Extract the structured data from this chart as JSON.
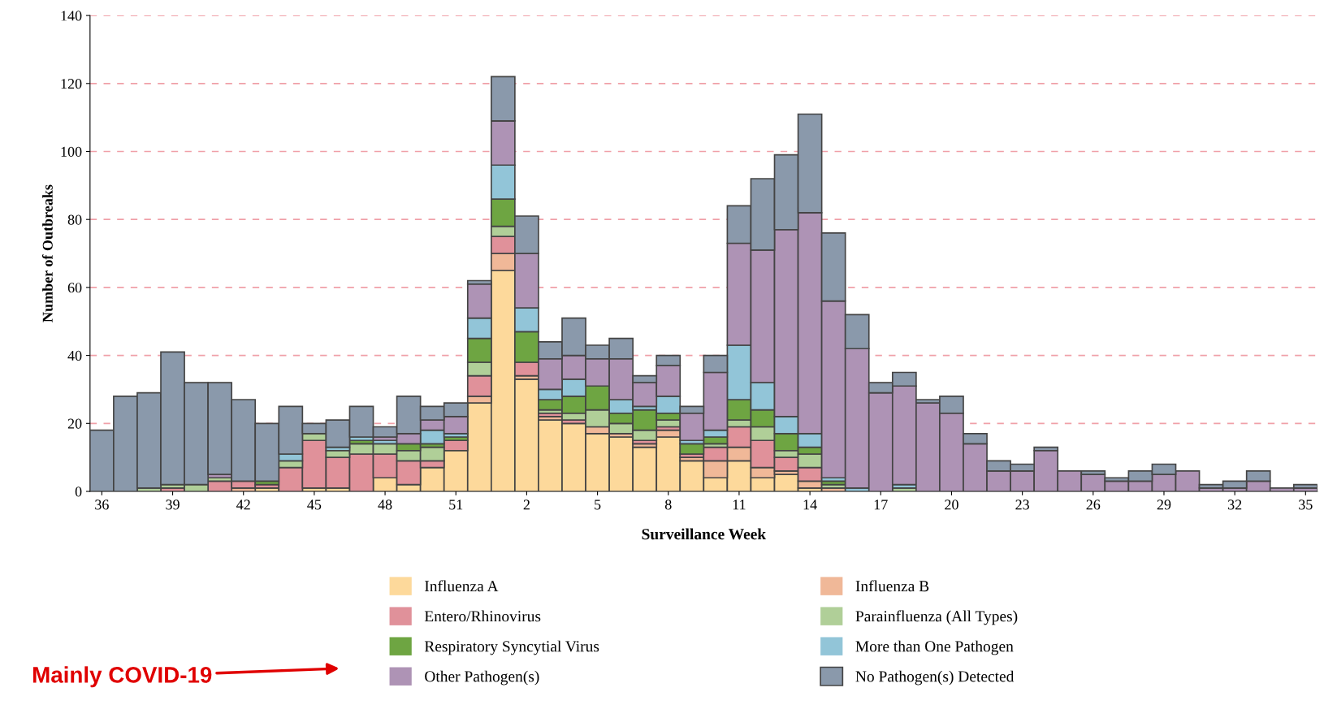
{
  "chart_data": {
    "type": "bar",
    "stacked": true,
    "xlabel": "Surveillance Week",
    "ylabel": "Number of Outbreaks",
    "categories": [
      "36",
      null,
      null,
      "39",
      null,
      null,
      "42",
      null,
      null,
      "45",
      null,
      null,
      "48",
      null,
      null,
      "51",
      null,
      null,
      "2",
      null,
      null,
      "5",
      null,
      null,
      "8",
      null,
      null,
      "11",
      null,
      null,
      "14",
      null,
      null,
      "17",
      null,
      null,
      "20",
      null,
      null,
      "23",
      null,
      null,
      "26",
      null,
      null,
      "29",
      null,
      null,
      "32",
      null,
      null,
      "35"
    ],
    "series": [
      {
        "name": "Influenza A",
        "color": "#fdd99b",
        "values": [
          0,
          0,
          0,
          0,
          0,
          0,
          0,
          1,
          0,
          1,
          1,
          0,
          4,
          2,
          7,
          12,
          26,
          65,
          33,
          21,
          20,
          17,
          16,
          13,
          16,
          9,
          4,
          9,
          4,
          5,
          1,
          0,
          0,
          0,
          0,
          0,
          0,
          0,
          0,
          0,
          0,
          0,
          0,
          0,
          0,
          0,
          0,
          0,
          0,
          0,
          0,
          0
        ]
      },
      {
        "name": "Influenza B",
        "color": "#f0b898",
        "values": [
          0,
          0,
          0,
          0,
          0,
          0,
          1,
          0,
          0,
          0,
          0,
          0,
          0,
          0,
          0,
          0,
          2,
          5,
          1,
          1,
          0,
          2,
          1,
          1,
          2,
          1,
          5,
          4,
          3,
          1,
          2,
          1,
          0,
          0,
          0,
          0,
          0,
          0,
          0,
          0,
          0,
          0,
          0,
          0,
          0,
          0,
          0,
          0,
          0,
          0,
          0,
          0
        ]
      },
      {
        "name": "Entero/Rhinovirus",
        "color": "#e0919a",
        "values": [
          0,
          0,
          0,
          1,
          0,
          3,
          2,
          1,
          7,
          14,
          9,
          11,
          7,
          7,
          2,
          3,
          6,
          5,
          4,
          1,
          1,
          0,
          0,
          1,
          1,
          1,
          4,
          6,
          8,
          4,
          4,
          0,
          0,
          0,
          0,
          0,
          0,
          0,
          0,
          0,
          0,
          0,
          0,
          0,
          0,
          0,
          0,
          0,
          0,
          0,
          0,
          0
        ]
      },
      {
        "name": "Parainfluenza (All Types)",
        "color": "#b0cf98",
        "values": [
          0,
          0,
          1,
          1,
          2,
          1,
          0,
          0,
          2,
          2,
          2,
          3,
          3,
          3,
          4,
          0,
          4,
          3,
          0,
          1,
          2,
          5,
          3,
          3,
          2,
          0,
          1,
          2,
          4,
          2,
          4,
          1,
          0,
          0,
          1,
          0,
          0,
          0,
          0,
          0,
          0,
          0,
          0,
          0,
          0,
          0,
          0,
          0,
          0,
          0,
          0,
          0
        ]
      },
      {
        "name": "Respiratory Syncytial Virus",
        "color": "#6ea542",
        "values": [
          0,
          0,
          0,
          0,
          0,
          0,
          0,
          1,
          0,
          0,
          0,
          1,
          0,
          2,
          1,
          1,
          7,
          8,
          9,
          3,
          5,
          7,
          3,
          6,
          2,
          3,
          2,
          6,
          5,
          5,
          2,
          1,
          0,
          0,
          0,
          0,
          0,
          0,
          0,
          0,
          0,
          0,
          0,
          0,
          0,
          0,
          0,
          0,
          0,
          0,
          0,
          0
        ]
      },
      {
        "name": "More than One Pathogen",
        "color": "#92c5d8",
        "values": [
          0,
          0,
          0,
          0,
          0,
          0,
          0,
          0,
          2,
          0,
          1,
          1,
          1,
          0,
          4,
          1,
          6,
          10,
          7,
          3,
          5,
          0,
          4,
          1,
          5,
          1,
          2,
          16,
          8,
          5,
          4,
          1,
          1,
          0,
          1,
          0,
          0,
          0,
          0,
          0,
          0,
          0,
          0,
          0,
          0,
          0,
          0,
          0,
          0,
          0,
          0,
          0
        ]
      },
      {
        "name": "Other Pathogen(s)",
        "color": "#ae93b5",
        "values": [
          0,
          0,
          0,
          0,
          0,
          1,
          0,
          0,
          0,
          0,
          0,
          0,
          1,
          3,
          3,
          5,
          10,
          13,
          16,
          9,
          7,
          8,
          12,
          7,
          9,
          8,
          17,
          30,
          39,
          55,
          65,
          52,
          41,
          29,
          29,
          26,
          23,
          14,
          6,
          6,
          12,
          6,
          5,
          3,
          3,
          5,
          6,
          1,
          1,
          3,
          1,
          1
        ]
      },
      {
        "name": "No Pathogen(s) Detected",
        "color": "#8a99ab",
        "values": [
          18,
          28,
          28,
          39,
          30,
          27,
          24,
          17,
          14,
          3,
          8,
          9,
          3,
          11,
          4,
          4,
          1,
          13,
          11,
          5,
          11,
          4,
          6,
          2,
          3,
          2,
          5,
          11,
          21,
          22,
          29,
          20,
          10,
          3,
          4,
          1,
          5,
          3,
          3,
          2,
          1,
          0,
          1,
          1,
          3,
          3,
          0,
          1,
          2,
          3,
          0,
          1
        ]
      }
    ],
    "ylim": [
      0,
      140
    ],
    "yticks": [
      0,
      20,
      40,
      60,
      80,
      100,
      120,
      140
    ],
    "grid": "y",
    "legend": "bottom",
    "annotations": [
      "Mainly COVID-19"
    ]
  }
}
